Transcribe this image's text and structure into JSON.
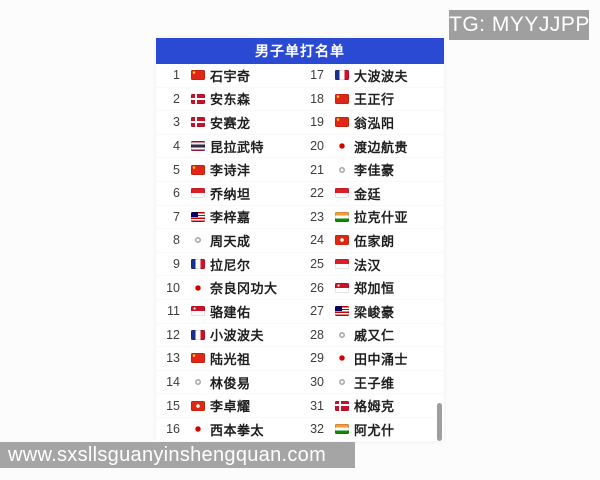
{
  "overlay": {
    "tg_label": "TG: MYYJJPP",
    "url": "www.sxsllsguanyinshengquan.com"
  },
  "list": {
    "title": "男子单打名单",
    "players": [
      {
        "rank": 1,
        "name": "石宇奇",
        "country": "CHN"
      },
      {
        "rank": 2,
        "name": "安东森",
        "country": "DEN"
      },
      {
        "rank": 3,
        "name": "安赛龙",
        "country": "DEN"
      },
      {
        "rank": 4,
        "name": "昆拉武特",
        "country": "THA"
      },
      {
        "rank": 5,
        "name": "李诗沣",
        "country": "CHN"
      },
      {
        "rank": 6,
        "name": "乔纳坦",
        "country": "INA"
      },
      {
        "rank": 7,
        "name": "李梓嘉",
        "country": "MAS"
      },
      {
        "rank": 8,
        "name": "周天成",
        "country": "TPE"
      },
      {
        "rank": 9,
        "name": "拉尼尔",
        "country": "FRA"
      },
      {
        "rank": 10,
        "name": "奈良冈功大",
        "country": "JPN"
      },
      {
        "rank": 11,
        "name": "骆建佑",
        "country": "SGP"
      },
      {
        "rank": 12,
        "name": "小波波夫",
        "country": "FRA"
      },
      {
        "rank": 13,
        "name": "陆光祖",
        "country": "CHN"
      },
      {
        "rank": 14,
        "name": "林俊易",
        "country": "TPE"
      },
      {
        "rank": 15,
        "name": "李卓耀",
        "country": "HKG"
      },
      {
        "rank": 16,
        "name": "西本拳太",
        "country": "JPN"
      },
      {
        "rank": 17,
        "name": "大波波夫",
        "country": "FRA"
      },
      {
        "rank": 18,
        "name": "王正行",
        "country": "CHN"
      },
      {
        "rank": 19,
        "name": "翁泓阳",
        "country": "CHN"
      },
      {
        "rank": 20,
        "name": "渡边航贵",
        "country": "JPN"
      },
      {
        "rank": 21,
        "name": "李佳豪",
        "country": "TPE"
      },
      {
        "rank": 22,
        "name": "金廷",
        "country": "INA"
      },
      {
        "rank": 23,
        "name": "拉克什亚",
        "country": "IND"
      },
      {
        "rank": 24,
        "name": "伍家朗",
        "country": "HKG"
      },
      {
        "rank": 25,
        "name": "法汉",
        "country": "INA"
      },
      {
        "rank": 26,
        "name": "郑加恒",
        "country": "SGP"
      },
      {
        "rank": 27,
        "name": "梁峻豪",
        "country": "MAS"
      },
      {
        "rank": 28,
        "name": "戚又仁",
        "country": "TPE"
      },
      {
        "rank": 29,
        "name": "田中涌士",
        "country": "JPN"
      },
      {
        "rank": 30,
        "name": "王子维",
        "country": "TPE"
      },
      {
        "rank": 31,
        "name": "格姆克",
        "country": "DEN"
      },
      {
        "rank": 32,
        "name": "阿尤什",
        "country": "IND"
      }
    ]
  },
  "colors": {
    "header_blue": "#2b4ad4",
    "overlay_gray": "#a5a5a5",
    "badge_gray": "#9f9f9f",
    "scrollbar_gray": "#9e9e9e"
  }
}
